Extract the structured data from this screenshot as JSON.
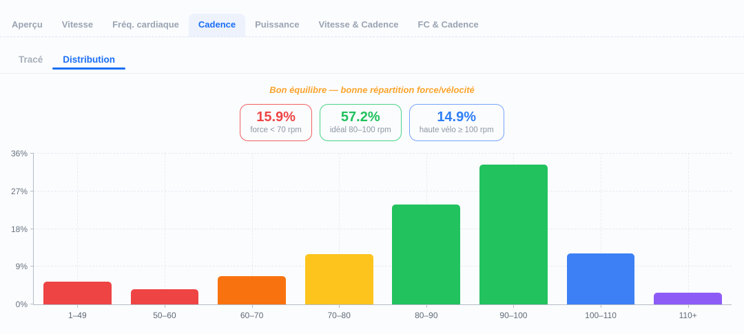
{
  "primary_tabs": {
    "items": [
      {
        "label": "Aperçu",
        "active": false
      },
      {
        "label": "Vitesse",
        "active": false
      },
      {
        "label": "Fréq. cardiaque",
        "active": false
      },
      {
        "label": "Cadence",
        "active": true
      },
      {
        "label": "Puissance",
        "active": false
      },
      {
        "label": "Vitesse & Cadence",
        "active": false
      },
      {
        "label": "FC & Cadence",
        "active": false
      }
    ],
    "active_color": "#1a6ef5",
    "active_bg": "#edf2fc"
  },
  "secondary_tabs": {
    "items": [
      {
        "label": "Tracé",
        "active": false
      },
      {
        "label": "Distribution",
        "active": true
      }
    ]
  },
  "status": {
    "text": "Bon équilibre — bonne répartition force/vélocité",
    "color": "#faa42c"
  },
  "summary_cards": [
    {
      "value": "15.9%",
      "label": "force < 70 rpm",
      "color": "#ee4545",
      "border_color": "#f15e5e"
    },
    {
      "value": "57.2%",
      "label": "idéal 80–100 rpm",
      "color": "#1fc15c",
      "border_color": "#47d484"
    },
    {
      "value": "14.9%",
      "label": "haute vélo ≥ 100 rpm",
      "color": "#2e7ef6",
      "border_color": "#74a4f8"
    }
  ],
  "chart_data": {
    "type": "bar",
    "categories": [
      "1–49",
      "50–60",
      "60–70",
      "70–80",
      "80–90",
      "90–100",
      "100–110",
      "110+"
    ],
    "values": [
      5.5,
      3.6,
      6.8,
      12.0,
      23.8,
      33.4,
      12.1,
      2.8
    ],
    "bar_colors": [
      "#ee4444",
      "#ee4444",
      "#f8730f",
      "#fcc41d",
      "#22c25e",
      "#22c25e",
      "#3d80f5",
      "#8d5cf6"
    ],
    "title": "",
    "xlabel": "",
    "ylabel": "",
    "unit": "%",
    "ylim": [
      0,
      36
    ],
    "yticks": [
      "0%",
      "9%",
      "18%",
      "27%",
      "36%"
    ],
    "grid": true,
    "legend": false
  }
}
